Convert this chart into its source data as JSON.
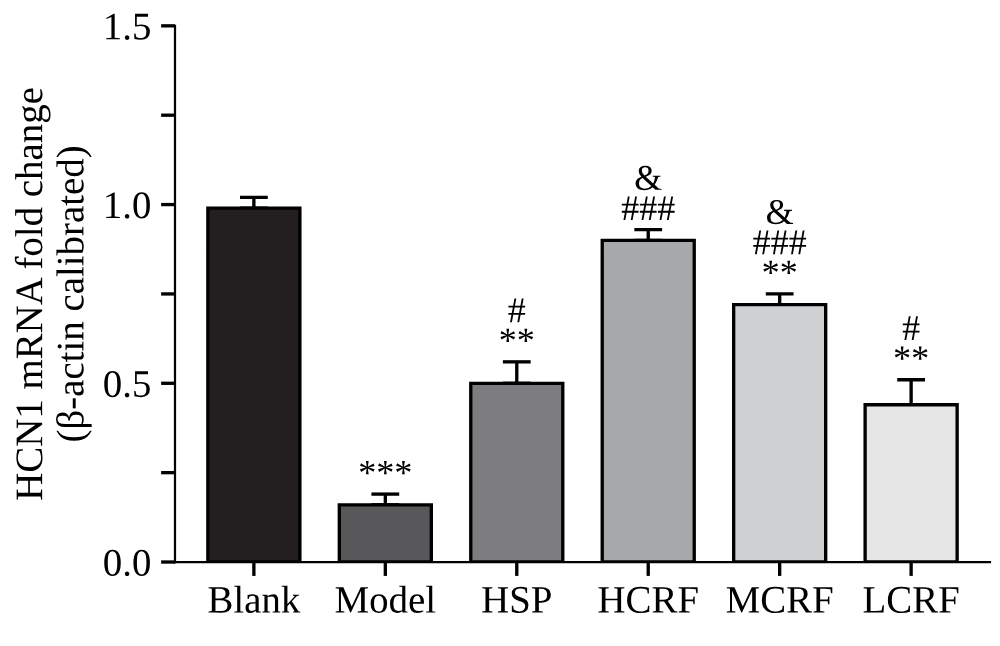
{
  "chart_data": {
    "type": "bar",
    "ylabel": "HCN1 mRNA fold change\n(β-actin calibrated)",
    "categories": [
      "Blank",
      "Model",
      "HSP",
      "HCRF",
      "MCRF",
      "LCRF"
    ],
    "values": [
      0.99,
      0.16,
      0.5,
      0.9,
      0.72,
      0.44
    ],
    "errors": [
      0.03,
      0.03,
      0.06,
      0.03,
      0.03,
      0.07
    ],
    "colors": [
      "#231f20",
      "#58585a",
      "#7d7d7f",
      "#a7a8aa",
      "#cfd0d2",
      "#e6e6e6"
    ],
    "ylim": [
      0,
      1.5
    ],
    "yticks": [
      {
        "value": 0,
        "label": "0.0"
      },
      {
        "value": 0.25,
        "label": null
      },
      0.5,
      {
        "value": 0.75,
        "label": null
      },
      {
        "value": 1,
        "label": "1.0"
      },
      {
        "value": 1.25,
        "label": null
      },
      1.5
    ],
    "annotations": [
      {
        "text": "***",
        "x": "Model",
        "y": 0.19
      },
      {
        "text": "#\n**",
        "x": "HSP",
        "y": 0.56
      },
      {
        "text": "&\n###",
        "x": "HCRF",
        "y": 0.93
      },
      {
        "text": "&\n###\n**",
        "x": "MCRF",
        "y": 0.75
      },
      {
        "text": "#\n**",
        "x": "LCRF",
        "y": 0.51
      }
    ],
    "grid": false,
    "legend": false
  }
}
